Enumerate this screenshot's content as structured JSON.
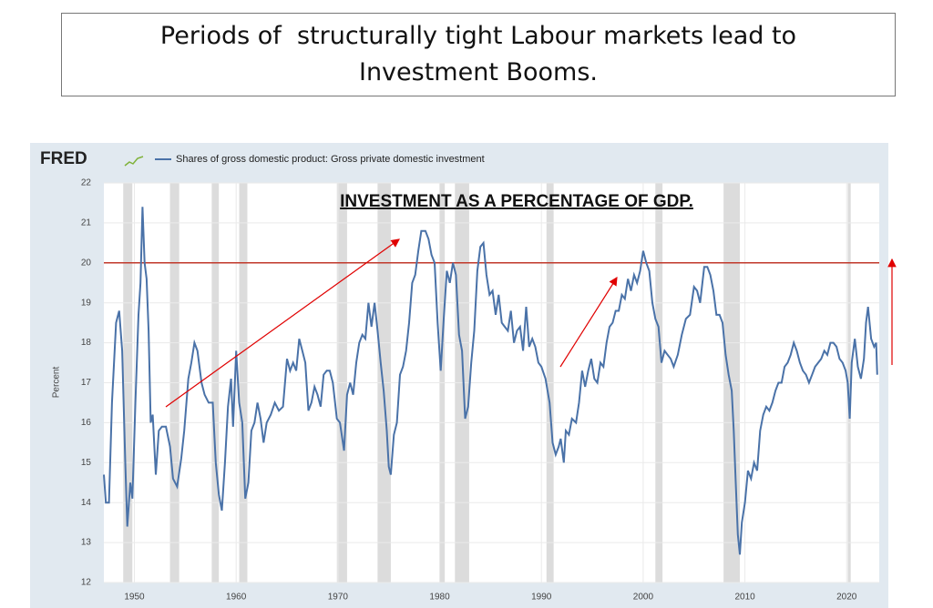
{
  "slide": {
    "title": [
      "Periods of  structurally tight Labour markets lead to",
      "Investment Booms."
    ]
  },
  "chart_data": {
    "type": "line",
    "logo": "FRED",
    "annotation": "INVESTMENT AS A PERCENTAGE OF GDP.",
    "ylabel": "Percent",
    "xlim": [
      1947,
      2023.2
    ],
    "ylim": [
      12,
      22
    ],
    "xticks": [
      1950,
      1960,
      1970,
      1980,
      1990,
      2000,
      2010,
      2020
    ],
    "yticks": [
      12,
      13,
      14,
      15,
      16,
      17,
      18,
      19,
      20,
      21,
      22
    ],
    "grid": true,
    "reference_line": {
      "value": 20,
      "color": "#c0392b"
    },
    "recessions": [
      [
        1948.9,
        1949.8
      ],
      [
        1953.5,
        1954.4
      ],
      [
        1957.6,
        1958.3
      ],
      [
        1960.3,
        1961.1
      ],
      [
        1969.9,
        1970.9
      ],
      [
        1973.9,
        1975.2
      ],
      [
        1980.0,
        1980.5
      ],
      [
        1981.5,
        1982.9
      ],
      [
        1990.5,
        1991.2
      ],
      [
        2001.2,
        2001.9
      ],
      [
        2007.9,
        2009.5
      ],
      [
        2020.1,
        2020.4
      ]
    ],
    "x": [
      1947.0,
      1947.2,
      1947.5,
      1947.8,
      1948.2,
      1948.5,
      1948.8,
      1949.1,
      1949.3,
      1949.6,
      1949.8,
      1950.1,
      1950.4,
      1950.6,
      1950.8,
      1951.0,
      1951.2,
      1951.4,
      1951.6,
      1951.8,
      1952.1,
      1952.4,
      1952.7,
      1953.1,
      1953.5,
      1953.8,
      1954.2,
      1954.6,
      1954.9,
      1955.3,
      1955.6,
      1955.9,
      1956.2,
      1956.6,
      1956.9,
      1957.3,
      1957.7,
      1958.0,
      1958.3,
      1958.6,
      1958.9,
      1959.2,
      1959.5,
      1959.7,
      1960.0,
      1960.3,
      1960.6,
      1960.9,
      1961.2,
      1961.5,
      1961.8,
      1962.1,
      1962.4,
      1962.7,
      1963.0,
      1963.4,
      1963.8,
      1964.2,
      1964.6,
      1965.0,
      1965.3,
      1965.6,
      1965.9,
      1966.2,
      1966.5,
      1966.8,
      1967.1,
      1967.4,
      1967.7,
      1968.0,
      1968.3,
      1968.6,
      1968.9,
      1969.2,
      1969.5,
      1969.9,
      1970.2,
      1970.6,
      1970.9,
      1971.2,
      1971.5,
      1971.8,
      1972.1,
      1972.4,
      1972.7,
      1973.0,
      1973.3,
      1973.6,
      1973.9,
      1974.2,
      1974.5,
      1974.8,
      1975.0,
      1975.2,
      1975.5,
      1975.8,
      1976.1,
      1976.4,
      1976.7,
      1977.0,
      1977.3,
      1977.6,
      1977.9,
      1978.2,
      1978.6,
      1978.9,
      1979.2,
      1979.5,
      1979.8,
      1980.1,
      1980.4,
      1980.7,
      1981.0,
      1981.3,
      1981.6,
      1981.9,
      1982.2,
      1982.5,
      1982.8,
      1983.1,
      1983.4,
      1983.7,
      1984.0,
      1984.3,
      1984.6,
      1984.9,
      1985.2,
      1985.5,
      1985.8,
      1986.1,
      1986.4,
      1986.7,
      1987.0,
      1987.3,
      1987.6,
      1987.9,
      1988.2,
      1988.5,
      1988.8,
      1989.1,
      1989.4,
      1989.7,
      1990.0,
      1990.4,
      1990.8,
      1991.1,
      1991.4,
      1991.7,
      1991.9,
      1992.2,
      1992.4,
      1992.7,
      1993.0,
      1993.4,
      1993.7,
      1994.0,
      1994.3,
      1994.6,
      1994.9,
      1995.2,
      1995.5,
      1995.8,
      1996.1,
      1996.4,
      1996.7,
      1997.0,
      1997.3,
      1997.6,
      1997.9,
      1998.2,
      1998.5,
      1998.8,
      1999.1,
      1999.4,
      1999.7,
      2000.0,
      2000.3,
      2000.6,
      2000.9,
      2001.2,
      2001.5,
      2001.8,
      2002.1,
      2002.4,
      2002.7,
      2003.0,
      2003.4,
      2003.8,
      2004.2,
      2004.6,
      2005.0,
      2005.3,
      2005.6,
      2006.0,
      2006.3,
      2006.6,
      2006.9,
      2007.2,
      2007.5,
      2007.8,
      2008.1,
      2008.4,
      2008.7,
      2008.9,
      2009.1,
      2009.3,
      2009.5,
      2009.7,
      2010.0,
      2010.3,
      2010.6,
      2010.9,
      2011.2,
      2011.5,
      2011.8,
      2012.1,
      2012.4,
      2012.7,
      2013.0,
      2013.3,
      2013.6,
      2013.9,
      2014.2,
      2014.5,
      2014.8,
      2015.1,
      2015.4,
      2015.7,
      2016.0,
      2016.3,
      2016.6,
      2016.9,
      2017.2,
      2017.5,
      2017.8,
      2018.1,
      2018.4,
      2018.7,
      2019.0,
      2019.3,
      2019.6,
      2019.9,
      2020.1,
      2020.3,
      2020.5,
      2020.8,
      2021.1,
      2021.4,
      2021.7,
      2021.9,
      2022.1,
      2022.4,
      2022.7,
      2022.9,
      2023.0
    ],
    "series": [
      {
        "name": "Shares of gross domestic product: Gross private domestic investment",
        "color": "#4a72a8",
        "values": [
          14.7,
          14.0,
          14.0,
          16.5,
          18.5,
          18.8,
          17.8,
          15.0,
          13.4,
          14.5,
          14.1,
          16.5,
          18.7,
          19.5,
          21.4,
          20.0,
          19.6,
          18.3,
          16.0,
          16.2,
          14.7,
          15.8,
          15.9,
          15.9,
          15.4,
          14.6,
          14.4,
          15.1,
          15.8,
          17.1,
          17.5,
          18.0,
          17.8,
          17.0,
          16.7,
          16.5,
          16.5,
          15.0,
          14.2,
          13.8,
          15.0,
          16.4,
          17.1,
          15.9,
          17.8,
          16.5,
          16.0,
          14.1,
          14.5,
          15.8,
          16.0,
          16.5,
          16.1,
          15.5,
          16.0,
          16.2,
          16.5,
          16.3,
          16.4,
          17.6,
          17.3,
          17.5,
          17.3,
          18.1,
          17.8,
          17.5,
          16.3,
          16.5,
          16.9,
          16.7,
          16.4,
          17.2,
          17.3,
          17.3,
          17.0,
          16.1,
          16.0,
          15.3,
          16.7,
          17.0,
          16.7,
          17.5,
          18.0,
          18.2,
          18.1,
          19.0,
          18.4,
          19.0,
          18.3,
          17.5,
          16.8,
          15.8,
          14.9,
          14.7,
          15.7,
          16.0,
          17.2,
          17.4,
          17.8,
          18.5,
          19.5,
          19.7,
          20.3,
          20.8,
          20.8,
          20.6,
          20.2,
          20.0,
          18.5,
          17.3,
          18.6,
          19.8,
          19.5,
          20.0,
          19.7,
          18.2,
          17.8,
          16.1,
          16.4,
          17.5,
          18.3,
          19.8,
          20.4,
          20.5,
          19.7,
          19.2,
          19.3,
          18.7,
          19.2,
          18.5,
          18.4,
          18.3,
          18.8,
          18.0,
          18.3,
          18.4,
          17.8,
          18.9,
          17.9,
          18.1,
          17.9,
          17.5,
          17.4,
          17.1,
          16.5,
          15.5,
          15.2,
          15.4,
          15.6,
          15.0,
          15.8,
          15.7,
          16.1,
          16.0,
          16.5,
          17.3,
          16.9,
          17.3,
          17.6,
          17.1,
          17.0,
          17.5,
          17.4,
          18.0,
          18.4,
          18.5,
          18.8,
          18.8,
          19.2,
          19.1,
          19.6,
          19.3,
          19.7,
          19.5,
          19.8,
          20.3,
          20.0,
          19.8,
          19.0,
          18.6,
          18.4,
          17.5,
          17.8,
          17.7,
          17.6,
          17.4,
          17.7,
          18.2,
          18.6,
          18.7,
          19.4,
          19.3,
          19.0,
          19.9,
          19.9,
          19.7,
          19.3,
          18.7,
          18.7,
          18.5,
          17.7,
          17.2,
          16.8,
          15.8,
          14.5,
          13.2,
          12.7,
          13.5,
          14.0,
          14.8,
          14.6,
          15.0,
          14.8,
          15.8,
          16.2,
          16.4,
          16.3,
          16.5,
          16.8,
          17.0,
          17.0,
          17.4,
          17.5,
          17.7,
          18.0,
          17.8,
          17.5,
          17.3,
          17.2,
          17.0,
          17.2,
          17.4,
          17.5,
          17.6,
          17.8,
          17.7,
          18.0,
          18.0,
          17.9,
          17.6,
          17.5,
          17.3,
          17.0,
          16.1,
          17.5,
          18.1,
          17.4,
          17.1,
          17.6,
          18.5,
          18.9,
          18.1,
          17.9,
          18.0,
          17.2
        ]
      }
    ]
  }
}
